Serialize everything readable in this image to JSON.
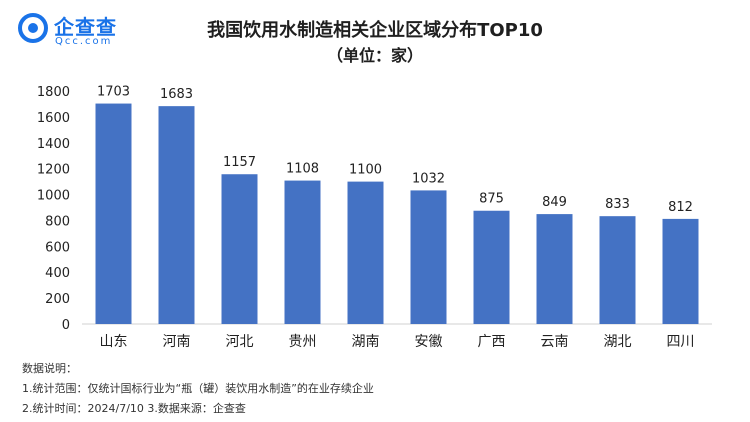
{
  "brand": {
    "name": "企查查",
    "domain": "Qcc.com",
    "logo_icon": "qcc-logo-icon",
    "color": "#1a73e8"
  },
  "title": "我国饮用水制造相关企业区域分布TOP10",
  "subtitle": "（单位：家）",
  "bar_color": "#4472c4",
  "chart_data": {
    "type": "bar",
    "title": "我国饮用水制造相关企业区域分布TOP10",
    "subtitle": "（单位：家）",
    "categories": [
      "山东",
      "河南",
      "河北",
      "贵州",
      "湖南",
      "安徽",
      "广西",
      "云南",
      "湖北",
      "四川"
    ],
    "values": [
      1703,
      1683,
      1157,
      1108,
      1100,
      1032,
      875,
      849,
      833,
      812
    ],
    "ylim": [
      0,
      1800
    ],
    "yticks": [
      0,
      200,
      400,
      600,
      800,
      1000,
      1200,
      1400,
      1600,
      1800
    ],
    "grid": false,
    "data_labels": true,
    "xlabel": "",
    "ylabel": ""
  },
  "notes": {
    "heading": "数据说明：",
    "line1": "1.统计范围：仅统计国标行业为“瓶（罐）装饮用水制造”的在业存续企业",
    "line2": "2.统计时间：2024/7/10     3.数据来源：企查查"
  }
}
